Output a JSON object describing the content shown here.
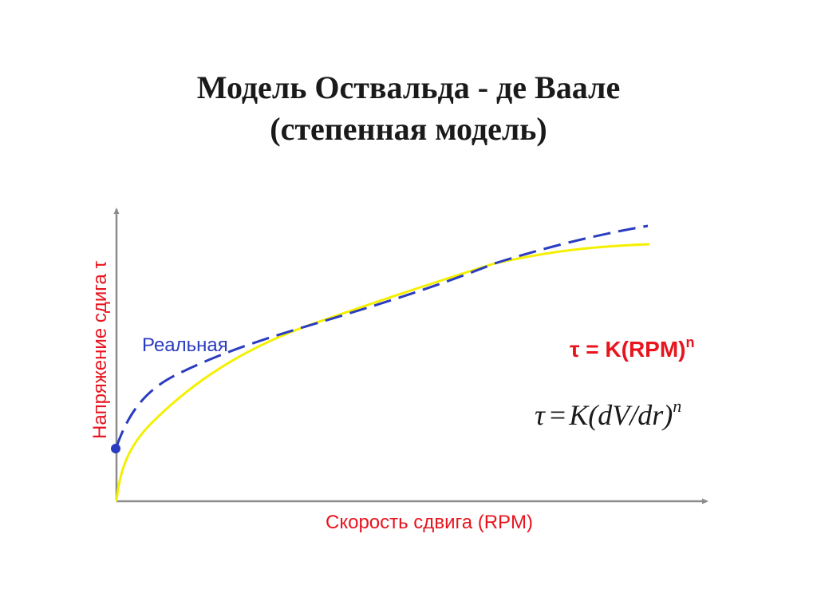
{
  "title": {
    "line1": "Модель Оствальда - де Ваале",
    "line2": "(степенная модель)"
  },
  "axes": {
    "x_label": "Скорость сдвига (RPM)",
    "y_label": "Напряжение сдига τ"
  },
  "curves": {
    "real_label": "Реальная"
  },
  "formulas": {
    "formula1": "τ = K(RPM)",
    "formula1_exponent": "n",
    "formula2_left": "τ",
    "formula2_eq": "=",
    "formula2_right": "K(dV/dr)",
    "formula2_exponent": "n"
  },
  "colors": {
    "axis": "#8c8c8c",
    "label_red": "#e8141e",
    "real_curve": "#2a3cc0",
    "model_curve": "#f5f000",
    "text_dark": "#1a1a1a"
  }
}
